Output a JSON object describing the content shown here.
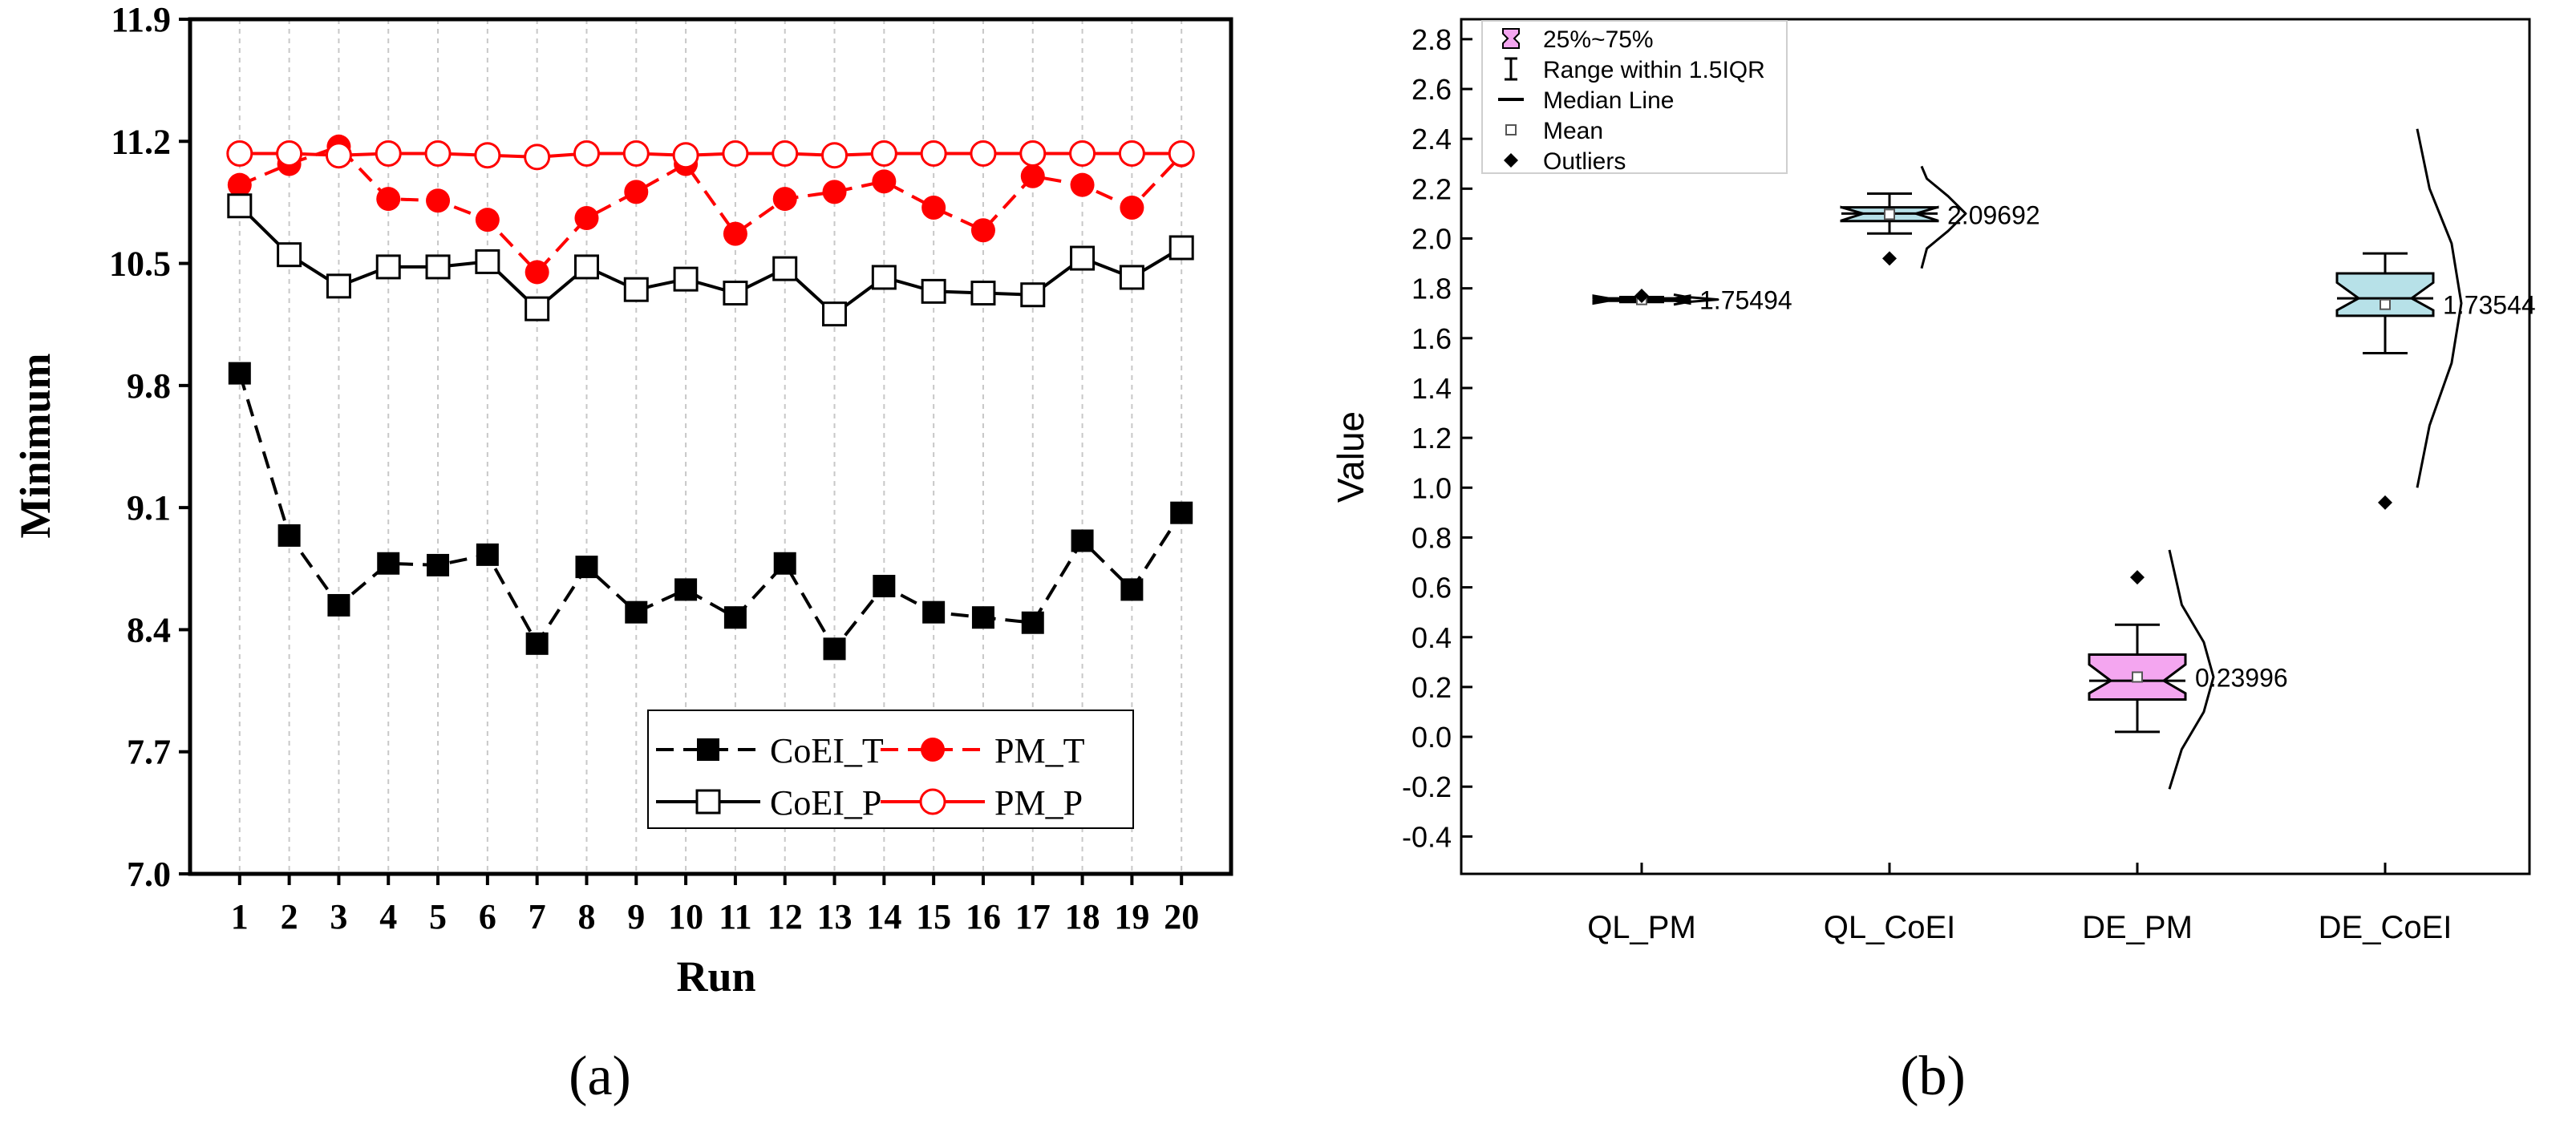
{
  "colors": {
    "black": "#000000",
    "red": "#ff0000",
    "grid": "#c8c8c8",
    "pink": "#f4a6f0",
    "lightblue": "#b7e1e8"
  },
  "chart_data": [
    {
      "type": "line",
      "panel_label": "(a)",
      "xlabel": "Run",
      "ylabel": "Minimum",
      "x": [
        1,
        2,
        3,
        4,
        5,
        6,
        7,
        8,
        9,
        10,
        11,
        12,
        13,
        14,
        15,
        16,
        17,
        18,
        19,
        20
      ],
      "xlim": [
        0,
        21
      ],
      "ylim": [
        7.0,
        11.9
      ],
      "yticks": [
        "7.0",
        "7.7",
        "8.4",
        "9.1",
        "9.8",
        "10.5",
        "11.2",
        "11.9"
      ],
      "grid": "vertical dashed",
      "legend_position": "bottom-right",
      "series": [
        {
          "name": "CoEI_T",
          "color": "#000000",
          "line": "dashed",
          "marker": "filled-square",
          "values": [
            9.87,
            8.94,
            8.54,
            8.78,
            8.77,
            8.83,
            8.32,
            8.76,
            8.5,
            8.63,
            8.47,
            8.78,
            8.29,
            8.65,
            8.5,
            8.47,
            8.44,
            8.91,
            8.63,
            9.07
          ]
        },
        {
          "name": "PM_T",
          "color": "#ff0000",
          "line": "dashed",
          "marker": "filled-circle",
          "values": [
            10.95,
            11.07,
            11.17,
            10.87,
            10.86,
            10.75,
            10.45,
            10.76,
            10.91,
            11.07,
            10.67,
            10.87,
            10.91,
            10.97,
            10.82,
            10.69,
            11.0,
            10.95,
            10.82,
            11.12
          ]
        },
        {
          "name": "CoEI_P",
          "color": "#000000",
          "line": "solid",
          "marker": "open-square",
          "values": [
            10.83,
            10.55,
            10.37,
            10.48,
            10.48,
            10.51,
            10.24,
            10.48,
            10.35,
            10.41,
            10.33,
            10.47,
            10.21,
            10.42,
            10.34,
            10.33,
            10.32,
            10.53,
            10.42,
            10.59
          ]
        },
        {
          "name": "PM_P",
          "color": "#ff0000",
          "line": "solid",
          "marker": "open-circle",
          "values": [
            11.13,
            11.13,
            11.12,
            11.13,
            11.13,
            11.12,
            11.11,
            11.13,
            11.13,
            11.12,
            11.13,
            11.13,
            11.12,
            11.13,
            11.13,
            11.13,
            11.13,
            11.13,
            11.13,
            11.13
          ]
        }
      ]
    },
    {
      "type": "box",
      "panel_label": "(b)",
      "xlabel": "",
      "ylabel": "Value",
      "ylim": [
        -0.55,
        2.88
      ],
      "yticks": [
        "-0.4",
        "-0.2",
        "0.0",
        "0.2",
        "0.4",
        "0.6",
        "0.8",
        "1.0",
        "1.2",
        "1.4",
        "1.6",
        "1.8",
        "2.0",
        "2.2",
        "2.4",
        "2.6",
        "2.8"
      ],
      "legend_position": "top-left",
      "legend": [
        "25%~75%",
        "Range within 1.5IQR",
        "Median Line",
        "Mean",
        "Outliers"
      ],
      "categories": [
        {
          "name": "QL_PM",
          "fill": "#f4a6f0",
          "q1": 1.75,
          "median": 1.755,
          "q3": 1.76,
          "whisker_low": 1.745,
          "whisker_high": 1.765,
          "mean": 1.75494,
          "mean_label": "1.75494",
          "outliers": [
            1.77
          ],
          "curve": [
            [
              1.735,
              0.0
            ],
            [
              1.745,
              0.3
            ],
            [
              1.755,
              1.0
            ],
            [
              1.765,
              0.3
            ],
            [
              1.775,
              0.0
            ]
          ]
        },
        {
          "name": "QL_CoEI",
          "fill": "#b7e1e8",
          "q1": 2.07,
          "median": 2.1,
          "q3": 2.125,
          "whisker_low": 2.02,
          "whisker_high": 2.18,
          "mean": 2.09692,
          "mean_label": "2.09692",
          "outliers": [
            1.92
          ],
          "curve": [
            [
              1.88,
              0.0
            ],
            [
              1.96,
              0.12
            ],
            [
              2.03,
              0.6
            ],
            [
              2.1,
              1.0
            ],
            [
              2.17,
              0.6
            ],
            [
              2.24,
              0.12
            ],
            [
              2.29,
              0.0
            ]
          ]
        },
        {
          "name": "DE_PM",
          "fill": "#f4a6f0",
          "q1": 0.15,
          "median": 0.225,
          "q3": 0.33,
          "whisker_low": 0.02,
          "whisker_high": 0.45,
          "mean": 0.23996,
          "mean_label": "0.23996",
          "outliers": [
            0.64
          ],
          "curve": [
            [
              -0.21,
              0.0
            ],
            [
              -0.05,
              0.28
            ],
            [
              0.1,
              0.78
            ],
            [
              0.24,
              1.0
            ],
            [
              0.38,
              0.78
            ],
            [
              0.53,
              0.28
            ],
            [
              0.75,
              0.0
            ]
          ]
        },
        {
          "name": "DE_CoEI",
          "fill": "#b7e1e8",
          "q1": 1.69,
          "median": 1.76,
          "q3": 1.86,
          "whisker_low": 1.54,
          "whisker_high": 1.94,
          "mean": 1.73544,
          "mean_label": "1.73544",
          "outliers": [
            0.94
          ],
          "curve": [
            [
              1.0,
              0.0
            ],
            [
              1.25,
              0.28
            ],
            [
              1.5,
              0.78
            ],
            [
              1.74,
              1.0
            ],
            [
              1.98,
              0.78
            ],
            [
              2.2,
              0.28
            ],
            [
              2.44,
              0.0
            ]
          ]
        }
      ]
    }
  ]
}
